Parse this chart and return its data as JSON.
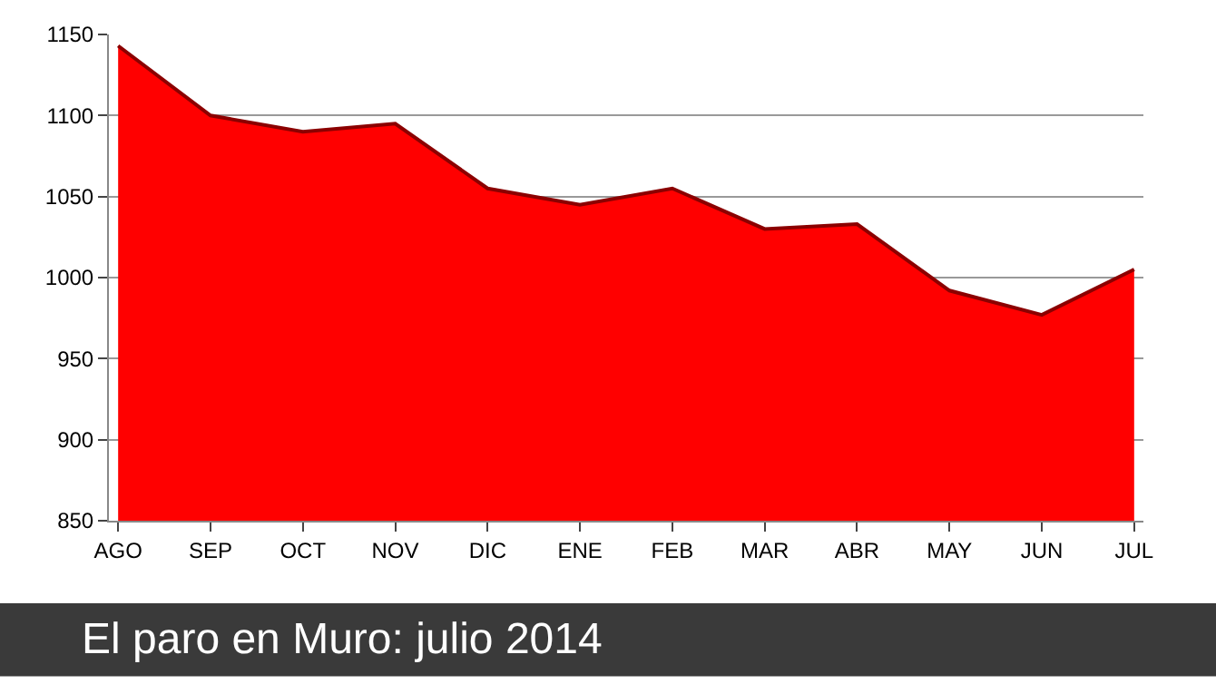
{
  "chart_data": {
    "type": "area",
    "title": "El paro en Muro: julio 2014",
    "categories": [
      "AGO",
      "SEP",
      "OCT",
      "NOV",
      "DIC",
      "ENE",
      "FEB",
      "MAR",
      "ABR",
      "MAY",
      "JUN",
      "JUL"
    ],
    "series": [
      {
        "color": "#ff0000",
        "values": [
          1143,
          1100,
          1090,
          1095,
          1055,
          1045,
          1055,
          1030,
          1033,
          992,
          977,
          1005
        ]
      }
    ],
    "ylim": [
      850,
      1150
    ],
    "yticks": [
      850,
      900,
      950,
      1000,
      1050,
      1100,
      1150
    ],
    "grid": "y"
  }
}
